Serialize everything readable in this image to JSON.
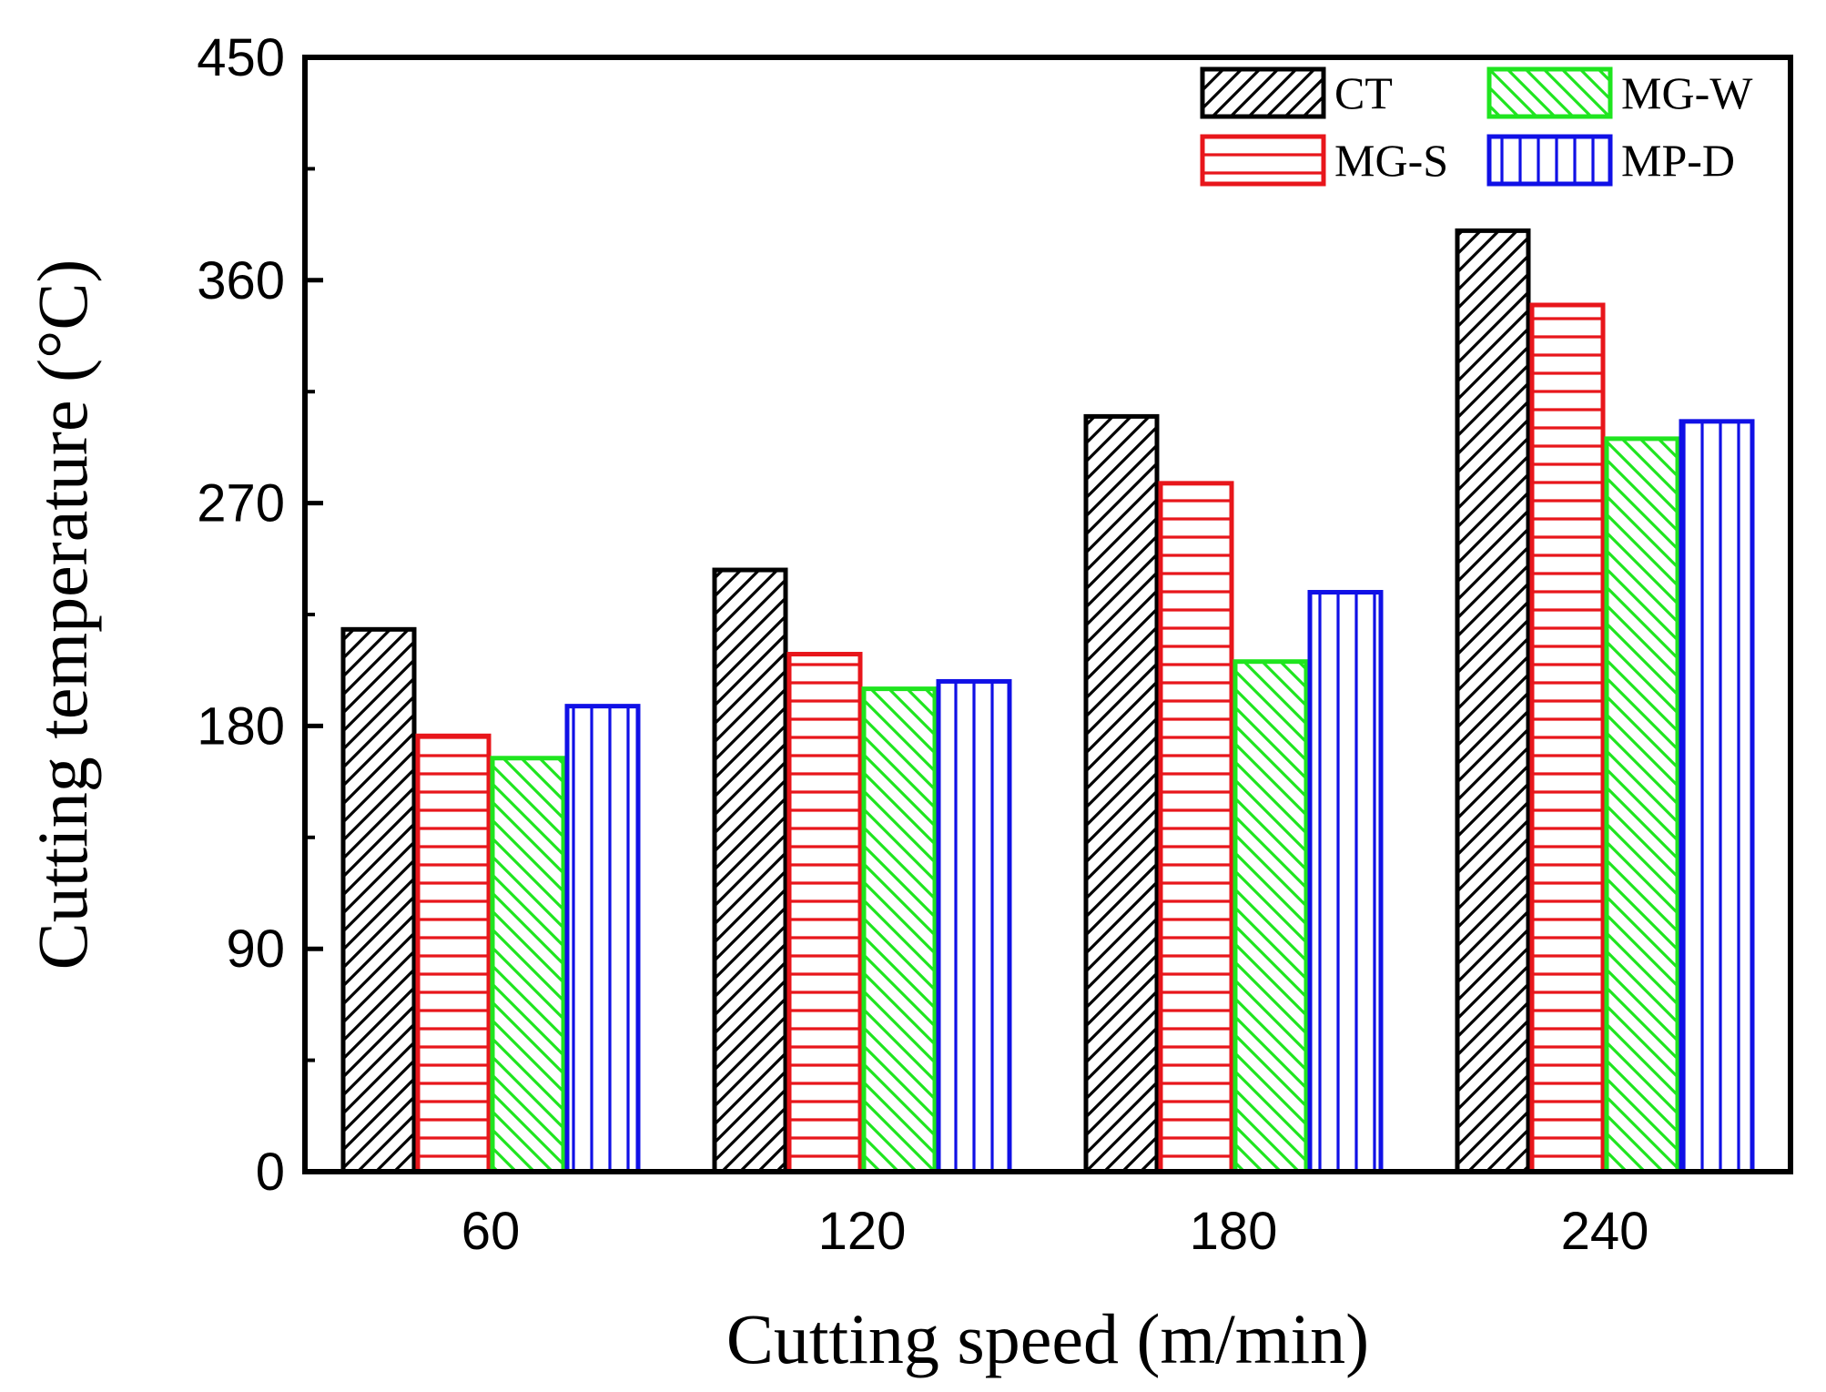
{
  "chart_data": {
    "type": "bar",
    "title": "",
    "xlabel": "Cutting speed (m/min)",
    "ylabel": "Cutting temperature (°C)",
    "categories": [
      "60",
      "120",
      "180",
      "240"
    ],
    "ylim": [
      0,
      450
    ],
    "yticks": [
      0,
      90,
      180,
      270,
      360,
      450
    ],
    "grid": false,
    "legend_position": "top-right",
    "series": [
      {
        "name": "CT",
        "values": [
          219,
          243,
          305,
          380
        ],
        "color": "#000000",
        "pattern": "diagonal-forward"
      },
      {
        "name": "MG-S",
        "values": [
          176,
          209,
          278,
          350
        ],
        "color": "#e8161b",
        "pattern": "horizontal"
      },
      {
        "name": "MG-W",
        "values": [
          167,
          195,
          206,
          296
        ],
        "color": "#1fe51f",
        "pattern": "diagonal-back"
      },
      {
        "name": "MP-D",
        "values": [
          188,
          198,
          234,
          303
        ],
        "color": "#1010e6",
        "pattern": "vertical"
      }
    ]
  }
}
